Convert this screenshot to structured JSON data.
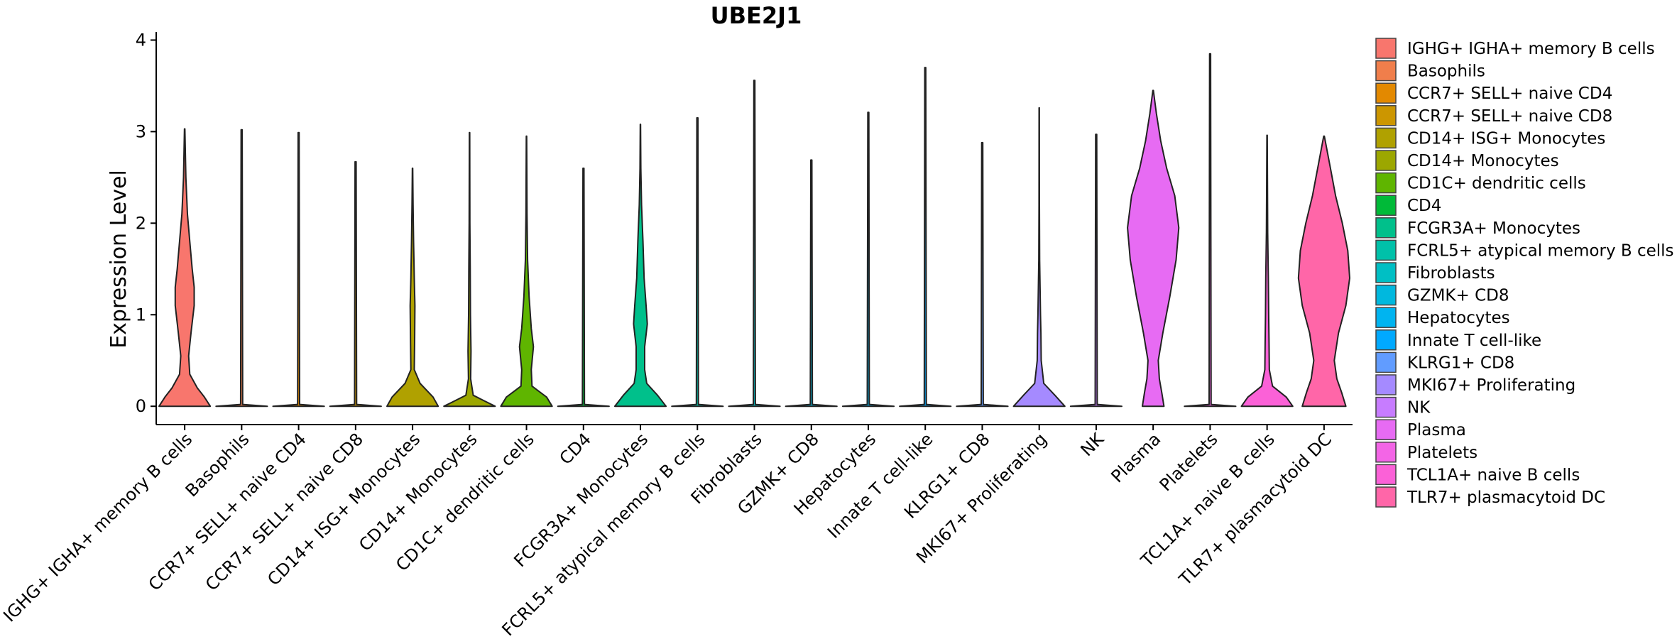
{
  "chart_data": {
    "type": "violin",
    "title": "UBE2J1",
    "xlabel": "",
    "ylabel": "Expression Level",
    "ylim": [
      -0.2,
      4.05
    ],
    "yticks": [
      0,
      1,
      2,
      3,
      4
    ],
    "legend_position": "right",
    "categories": [
      "IGHG+ IGHA+ memory B cells",
      "Basophils",
      "CCR7+ SELL+ naive CD4",
      "CCR7+ SELL+ naive CD8",
      "CD14+ ISG+ Monocytes",
      "CD14+ Monocytes",
      "CD1C+ dendritic cells",
      "CD4",
      "FCGR3A+ Monocytes",
      "FCRL5+ atypical memory B cells",
      "Fibroblasts",
      "GZMK+ CD8",
      "Hepatocytes",
      "Innate T cell-like",
      "KLRG1+ CD8",
      "MKI67+ Proliferating",
      "NK",
      "Plasma",
      "Platelets",
      "TCL1A+ naive B cells",
      "TLR7+ plasmacytoid DC"
    ],
    "legend_labels": [
      "IGHG+ IGHA+ memory B cells",
      "Basophils",
      "CCR7+ SELL+ naive CD4",
      "CCR7+ SELL+ naive CD8",
      "CD14+ ISG+ Monocytes",
      "CD14+ Monocytes",
      "CD1C+ dendritic cells",
      "CD4",
      "FCGR3A+ Monocytes",
      "FCRL5+ atypical memory B cells",
      "Fibroblasts",
      "GZMK+ CD8",
      "Hepatocytes",
      "Innate T cell-like",
      "KLRG1+ CD8",
      "MKI67+ Proliferating",
      "NK",
      "Plasma",
      "Platelets",
      "TCL1A+ naive B cells",
      "TLR7+ plasmacytoid DC"
    ],
    "colors": [
      "#F8766D",
      "#F07E4B",
      "#E38900",
      "#CC9600",
      "#B0A100",
      "#9CA700",
      "#5FB500",
      "#00BA38",
      "#00C08B",
      "#00C1A9",
      "#00BFC4",
      "#00B8DE",
      "#00B4F0",
      "#00A9FF",
      "#619CFF",
      "#A58AFF",
      "#C77CFF",
      "#E76BF3",
      "#F365E6",
      "#FB61D7",
      "#FF66A8"
    ],
    "max_values": [
      3.03,
      3.02,
      2.99,
      2.67,
      2.6,
      2.99,
      2.95,
      2.6,
      3.08,
      3.15,
      3.56,
      2.69,
      3.21,
      3.7,
      2.88,
      3.26,
      2.97,
      3.45,
      3.85,
      2.96,
      2.95
    ],
    "density_profiles": [
      [
        [
          0,
          0.65
        ],
        [
          0.1,
          0.5
        ],
        [
          0.2,
          0.32
        ],
        [
          0.35,
          0.13
        ],
        [
          0.55,
          0.1
        ],
        [
          0.8,
          0.16
        ],
        [
          1.1,
          0.24
        ],
        [
          1.3,
          0.24
        ],
        [
          1.5,
          0.19
        ],
        [
          1.8,
          0.13
        ],
        [
          2.1,
          0.07
        ],
        [
          2.5,
          0.03
        ],
        [
          3.03,
          0.005
        ]
      ],
      [
        [
          0,
          0.5
        ],
        [
          0.02,
          0.02
        ],
        [
          3.02,
          0.01
        ]
      ],
      [
        [
          0,
          0.5
        ],
        [
          0.02,
          0.02
        ],
        [
          2.99,
          0.01
        ]
      ],
      [
        [
          0,
          0.5
        ],
        [
          0.02,
          0.02
        ],
        [
          2.67,
          0.01
        ]
      ],
      [
        [
          0,
          0.75
        ],
        [
          0.1,
          0.6
        ],
        [
          0.25,
          0.22
        ],
        [
          0.4,
          0.05
        ],
        [
          0.7,
          0.06
        ],
        [
          1.1,
          0.07
        ],
        [
          1.4,
          0.05
        ],
        [
          1.8,
          0.03
        ],
        [
          2.2,
          0.015
        ],
        [
          2.6,
          0.005
        ]
      ],
      [
        [
          0,
          0.7
        ],
        [
          0.06,
          0.4
        ],
        [
          0.12,
          0.1
        ],
        [
          0.3,
          0.03
        ],
        [
          0.6,
          0.04
        ],
        [
          1.0,
          0.025
        ],
        [
          1.5,
          0.02
        ],
        [
          2.0,
          0.01
        ],
        [
          2.99,
          0.005
        ]
      ],
      [
        [
          0,
          0.7
        ],
        [
          0.1,
          0.55
        ],
        [
          0.22,
          0.15
        ],
        [
          0.4,
          0.13
        ],
        [
          0.65,
          0.19
        ],
        [
          0.85,
          0.13
        ],
        [
          1.2,
          0.07
        ],
        [
          1.6,
          0.03
        ],
        [
          2.1,
          0.015
        ],
        [
          2.95,
          0.005
        ]
      ],
      [
        [
          0,
          0.5
        ],
        [
          0.02,
          0.02
        ],
        [
          2.6,
          0.01
        ]
      ],
      [
        [
          0,
          0.9
        ],
        [
          0.12,
          0.6
        ],
        [
          0.25,
          0.22
        ],
        [
          0.4,
          0.15
        ],
        [
          0.65,
          0.15
        ],
        [
          0.9,
          0.24
        ],
        [
          1.1,
          0.2
        ],
        [
          1.4,
          0.13
        ],
        [
          1.8,
          0.09
        ],
        [
          2.2,
          0.04
        ],
        [
          2.6,
          0.015
        ],
        [
          3.08,
          0.005
        ]
      ],
      [
        [
          0,
          0.5
        ],
        [
          0.02,
          0.02
        ],
        [
          3.15,
          0.01
        ]
      ],
      [
        [
          0,
          0.5
        ],
        [
          0.02,
          0.02
        ],
        [
          3.56,
          0.01
        ]
      ],
      [
        [
          0,
          0.5
        ],
        [
          0.02,
          0.02
        ],
        [
          2.69,
          0.01
        ]
      ],
      [
        [
          0,
          0.5
        ],
        [
          0.02,
          0.02
        ],
        [
          3.21,
          0.01
        ]
      ],
      [
        [
          0,
          0.5
        ],
        [
          0.02,
          0.02
        ],
        [
          3.7,
          0.01
        ]
      ],
      [
        [
          0,
          0.5
        ],
        [
          0.02,
          0.02
        ],
        [
          2.88,
          0.01
        ]
      ],
      [
        [
          0,
          0.9
        ],
        [
          0.12,
          0.55
        ],
        [
          0.25,
          0.16
        ],
        [
          0.5,
          0.07
        ],
        [
          0.8,
          0.06
        ],
        [
          1.0,
          0.045
        ],
        [
          1.3,
          0.03
        ],
        [
          1.6,
          0.015
        ],
        [
          2.2,
          0.008
        ],
        [
          3.26,
          0.004
        ]
      ],
      [
        [
          0,
          0.5
        ],
        [
          0.02,
          0.02
        ],
        [
          2.97,
          0.01
        ]
      ],
      [
        [
          0,
          0.4
        ],
        [
          0.15,
          0.32
        ],
        [
          0.3,
          0.23
        ],
        [
          0.5,
          0.19
        ],
        [
          0.8,
          0.36
        ],
        [
          1.2,
          0.62
        ],
        [
          1.6,
          0.85
        ],
        [
          1.95,
          0.95
        ],
        [
          2.3,
          0.8
        ],
        [
          2.6,
          0.5
        ],
        [
          2.9,
          0.28
        ],
        [
          3.2,
          0.12
        ],
        [
          3.45,
          0.01
        ]
      ],
      [
        [
          0,
          0.5
        ],
        [
          0.02,
          0.02
        ],
        [
          3.85,
          0.01
        ]
      ],
      [
        [
          0,
          0.8
        ],
        [
          0.1,
          0.6
        ],
        [
          0.22,
          0.17
        ],
        [
          0.4,
          0.07
        ],
        [
          0.7,
          0.06
        ],
        [
          1.0,
          0.05
        ],
        [
          1.4,
          0.04
        ],
        [
          1.9,
          0.02
        ],
        [
          2.96,
          0.005
        ]
      ],
      [
        [
          0,
          0.68
        ],
        [
          0.15,
          0.55
        ],
        [
          0.3,
          0.4
        ],
        [
          0.5,
          0.32
        ],
        [
          0.8,
          0.45
        ],
        [
          1.1,
          0.68
        ],
        [
          1.4,
          0.8
        ],
        [
          1.7,
          0.74
        ],
        [
          2.0,
          0.57
        ],
        [
          2.3,
          0.36
        ],
        [
          2.6,
          0.2
        ],
        [
          2.95,
          0.01
        ]
      ]
    ]
  }
}
